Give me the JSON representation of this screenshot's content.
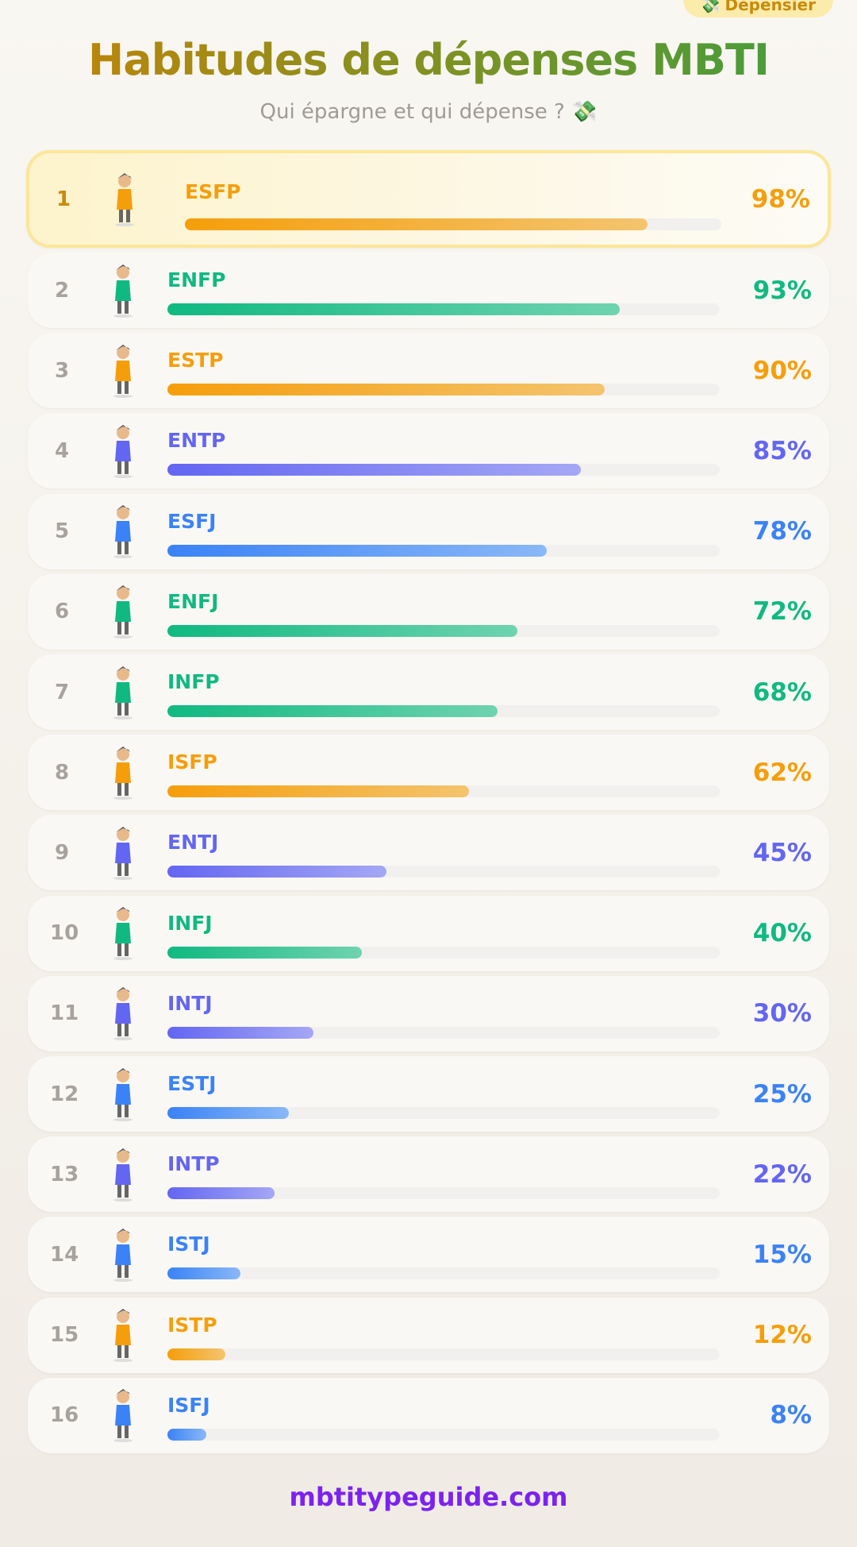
{
  "badge": {
    "icon": "money-with-wings-icon",
    "emoji": "💸",
    "label": "Dépensier"
  },
  "header": {
    "title": "Habitudes de dépenses MBTI",
    "subtitle": "Qui épargne et qui dépense ? 💸"
  },
  "colors": {
    "orange": "#f59e0b",
    "green": "#10b981",
    "purple": "#6366f1",
    "blue": "#3b82f6"
  },
  "chart_data": {
    "type": "bar",
    "orientation": "horizontal",
    "categories": [
      "ESFP",
      "ENFP",
      "ESTP",
      "ENTP",
      "ESFJ",
      "ENFJ",
      "INFP",
      "ISFP",
      "ENTJ",
      "INFJ",
      "INTJ",
      "ESTJ",
      "INTP",
      "ISTJ",
      "ISTP",
      "ISFJ"
    ],
    "values": [
      98,
      93,
      90,
      85,
      78,
      72,
      68,
      62,
      45,
      40,
      30,
      25,
      22,
      15,
      12,
      8
    ],
    "ranks": [
      "1",
      "2",
      "3",
      "4",
      "5",
      "6",
      "7",
      "8",
      "9",
      "10",
      "11",
      "12",
      "13",
      "14",
      "15",
      "16"
    ],
    "labels": [
      "98%",
      "93%",
      "90%",
      "85%",
      "78%",
      "72%",
      "68%",
      "62%",
      "45%",
      "40%",
      "30%",
      "25%",
      "22%",
      "15%",
      "12%",
      "8%"
    ],
    "color_groups": [
      "orange",
      "green",
      "orange",
      "purple",
      "blue",
      "green",
      "green",
      "orange",
      "purple",
      "green",
      "purple",
      "blue",
      "purple",
      "blue",
      "orange",
      "blue"
    ],
    "unit": "%"
  },
  "footer": {
    "site": "mbtitypeguide.com"
  }
}
